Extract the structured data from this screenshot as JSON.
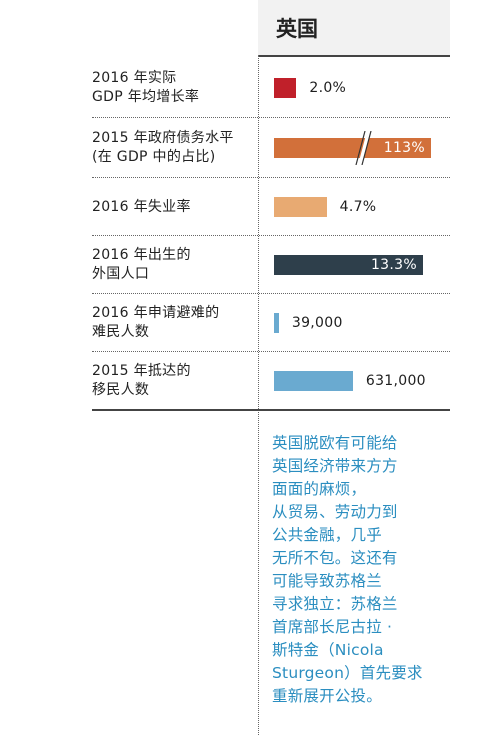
{
  "header": {
    "country": "英国"
  },
  "chart_data": {
    "type": "bar",
    "series_name": "英国",
    "rows": [
      {
        "label_lines": [
          "2016 年实际",
          "GDP 年均增长率"
        ],
        "value": 2.0,
        "display": "2.0%",
        "color": "#c0202a",
        "label_inside": false,
        "broken": false
      },
      {
        "label_lines": [
          "2015 年政府债务水平",
          "(在 GDP 中的占比)"
        ],
        "value": 113,
        "display": "113%",
        "color": "#d2703a",
        "label_inside": true,
        "broken": true
      },
      {
        "label_lines": [
          "2016 年失业率"
        ],
        "value": 4.7,
        "display": "4.7%",
        "color": "#e8aa72",
        "label_inside": false,
        "broken": false
      },
      {
        "label_lines": [
          "2016 年出生的",
          "外国人口"
        ],
        "value": 13.3,
        "display": "13.3%",
        "color": "#2e3f4b",
        "label_inside": true,
        "broken": false
      },
      {
        "label_lines": [
          "2016 年申请避难的",
          "难民人数"
        ],
        "value": 39000,
        "display": "39,000",
        "color": "#6aaad0",
        "label_inside": false,
        "broken": false
      },
      {
        "label_lines": [
          "2015 年抵达的",
          "移民人数"
        ],
        "value": 631000,
        "display": "631,000",
        "color": "#6aaad0",
        "label_inside": false,
        "broken": false
      }
    ]
  },
  "note": {
    "lines": [
      "英国脱欧有可能给",
      "英国经济带来方方",
      "面面的麻烦，",
      "从贸易、劳动力到",
      "公共金融，几乎",
      "无所不包。这还有",
      "可能导致苏格兰",
      "寻求独立：苏格兰",
      "首席部长尼古拉 ·",
      "斯特金（Nicola",
      "Sturgeon）首先要求",
      "重新展开公投。"
    ]
  }
}
